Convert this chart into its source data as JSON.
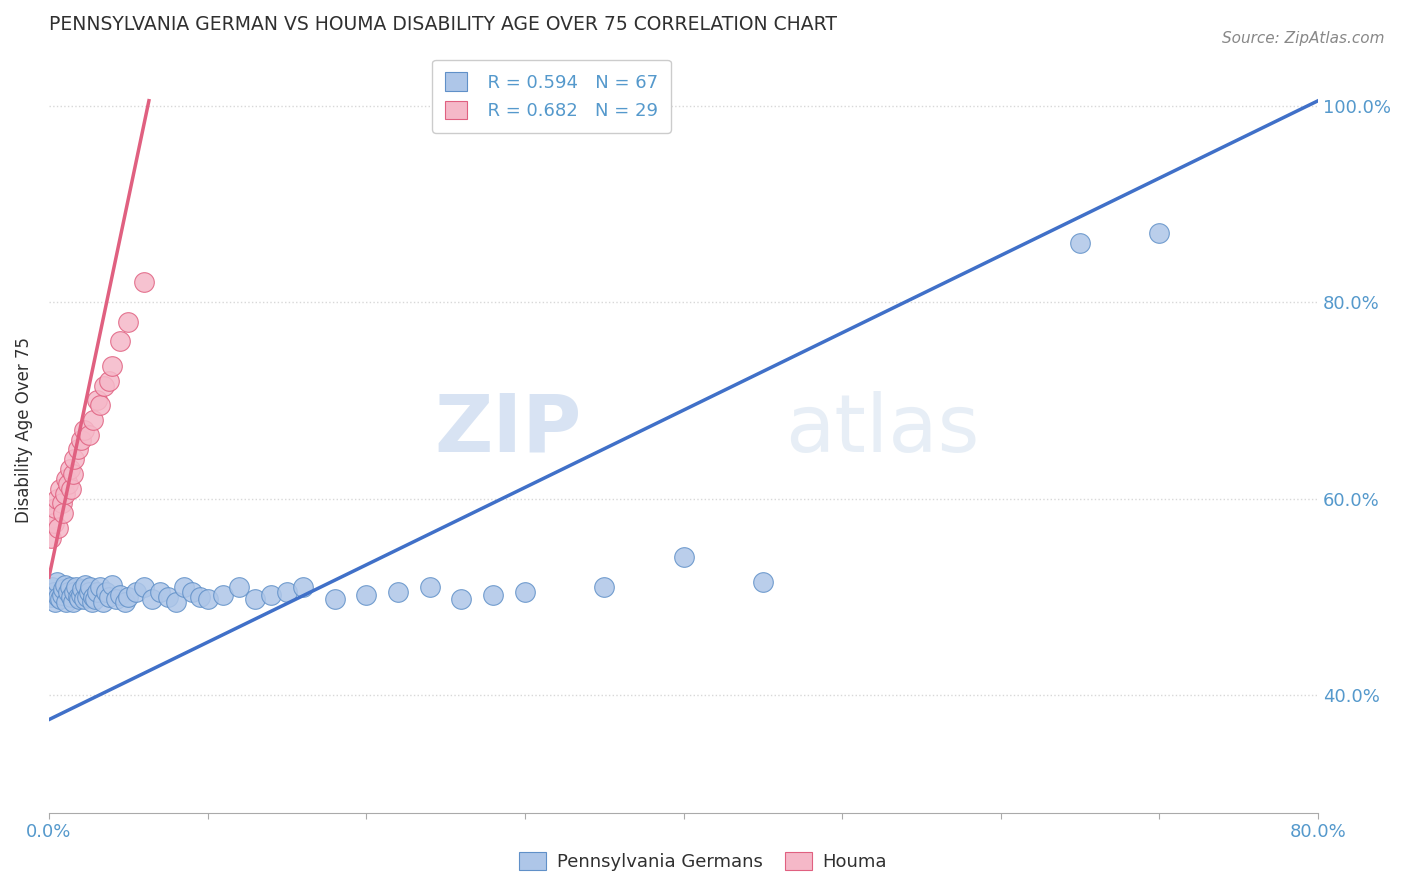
{
  "title": "PENNSYLVANIA GERMAN VS HOUMA DISABILITY AGE OVER 75 CORRELATION CHART",
  "source": "Source: ZipAtlas.com",
  "ylabel_label": "Disability Age Over 75",
  "xlim": [
    0.0,
    0.8
  ],
  "ylim": [
    0.28,
    1.06
  ],
  "legend_blue_r": "R = 0.594",
  "legend_blue_n": "N = 67",
  "legend_pink_r": "R = 0.682",
  "legend_pink_n": "N = 29",
  "watermark_zip": "ZIP",
  "watermark_atlas": "atlas",
  "blue_color": "#aec6e8",
  "pink_color": "#f5b8c8",
  "blue_edge_color": "#6090c8",
  "pink_edge_color": "#e06080",
  "blue_line_color": "#4070c8",
  "pink_line_color": "#e06080",
  "title_color": "#303030",
  "tick_color": "#5599cc",
  "grid_color": "#d8d8d8",
  "blue_scatter_x": [
    0.001,
    0.002,
    0.003,
    0.004,
    0.005,
    0.006,
    0.007,
    0.008,
    0.009,
    0.01,
    0.011,
    0.012,
    0.013,
    0.014,
    0.015,
    0.016,
    0.017,
    0.018,
    0.019,
    0.02,
    0.021,
    0.022,
    0.023,
    0.024,
    0.025,
    0.026,
    0.027,
    0.028,
    0.029,
    0.03,
    0.032,
    0.034,
    0.036,
    0.038,
    0.04,
    0.042,
    0.045,
    0.048,
    0.05,
    0.055,
    0.06,
    0.065,
    0.07,
    0.075,
    0.08,
    0.085,
    0.09,
    0.095,
    0.1,
    0.11,
    0.12,
    0.13,
    0.14,
    0.15,
    0.16,
    0.18,
    0.2,
    0.22,
    0.24,
    0.26,
    0.28,
    0.3,
    0.35,
    0.4,
    0.45,
    0.65,
    0.7
  ],
  "blue_scatter_y": [
    0.5,
    0.51,
    0.505,
    0.495,
    0.515,
    0.5,
    0.498,
    0.502,
    0.508,
    0.512,
    0.495,
    0.505,
    0.51,
    0.5,
    0.495,
    0.505,
    0.51,
    0.5,
    0.498,
    0.502,
    0.508,
    0.498,
    0.512,
    0.5,
    0.505,
    0.51,
    0.495,
    0.5,
    0.498,
    0.505,
    0.51,
    0.495,
    0.505,
    0.5,
    0.512,
    0.498,
    0.502,
    0.495,
    0.5,
    0.505,
    0.51,
    0.498,
    0.505,
    0.5,
    0.495,
    0.51,
    0.505,
    0.5,
    0.498,
    0.502,
    0.51,
    0.498,
    0.502,
    0.505,
    0.51,
    0.498,
    0.502,
    0.505,
    0.51,
    0.498,
    0.502,
    0.505,
    0.51,
    0.54,
    0.515,
    0.86,
    0.87
  ],
  "pink_scatter_x": [
    0.001,
    0.002,
    0.003,
    0.004,
    0.005,
    0.006,
    0.007,
    0.008,
    0.009,
    0.01,
    0.011,
    0.012,
    0.013,
    0.014,
    0.015,
    0.016,
    0.018,
    0.02,
    0.022,
    0.025,
    0.028,
    0.03,
    0.032,
    0.035,
    0.038,
    0.04,
    0.045,
    0.05,
    0.06
  ],
  "pink_scatter_y": [
    0.56,
    0.58,
    0.575,
    0.59,
    0.6,
    0.57,
    0.61,
    0.595,
    0.585,
    0.605,
    0.62,
    0.615,
    0.63,
    0.61,
    0.625,
    0.64,
    0.65,
    0.66,
    0.67,
    0.665,
    0.68,
    0.7,
    0.695,
    0.715,
    0.72,
    0.735,
    0.76,
    0.78,
    0.82
  ],
  "blue_line_x": [
    0.0,
    0.8
  ],
  "blue_line_y": [
    0.375,
    1.005
  ],
  "pink_line_x": [
    0.0,
    0.063
  ],
  "pink_line_y": [
    0.52,
    1.005
  ],
  "x_tick_vals": [
    0.0,
    0.1,
    0.2,
    0.3,
    0.4,
    0.5,
    0.6,
    0.7,
    0.8
  ],
  "x_tick_labels": [
    "0.0%",
    "",
    "",
    "",
    "",
    "",
    "",
    "",
    "80.0%"
  ],
  "y_tick_vals": [
    0.4,
    0.6,
    0.8,
    1.0
  ],
  "y_tick_labels": [
    "40.0%",
    "60.0%",
    "80.0%",
    "100.0%"
  ]
}
